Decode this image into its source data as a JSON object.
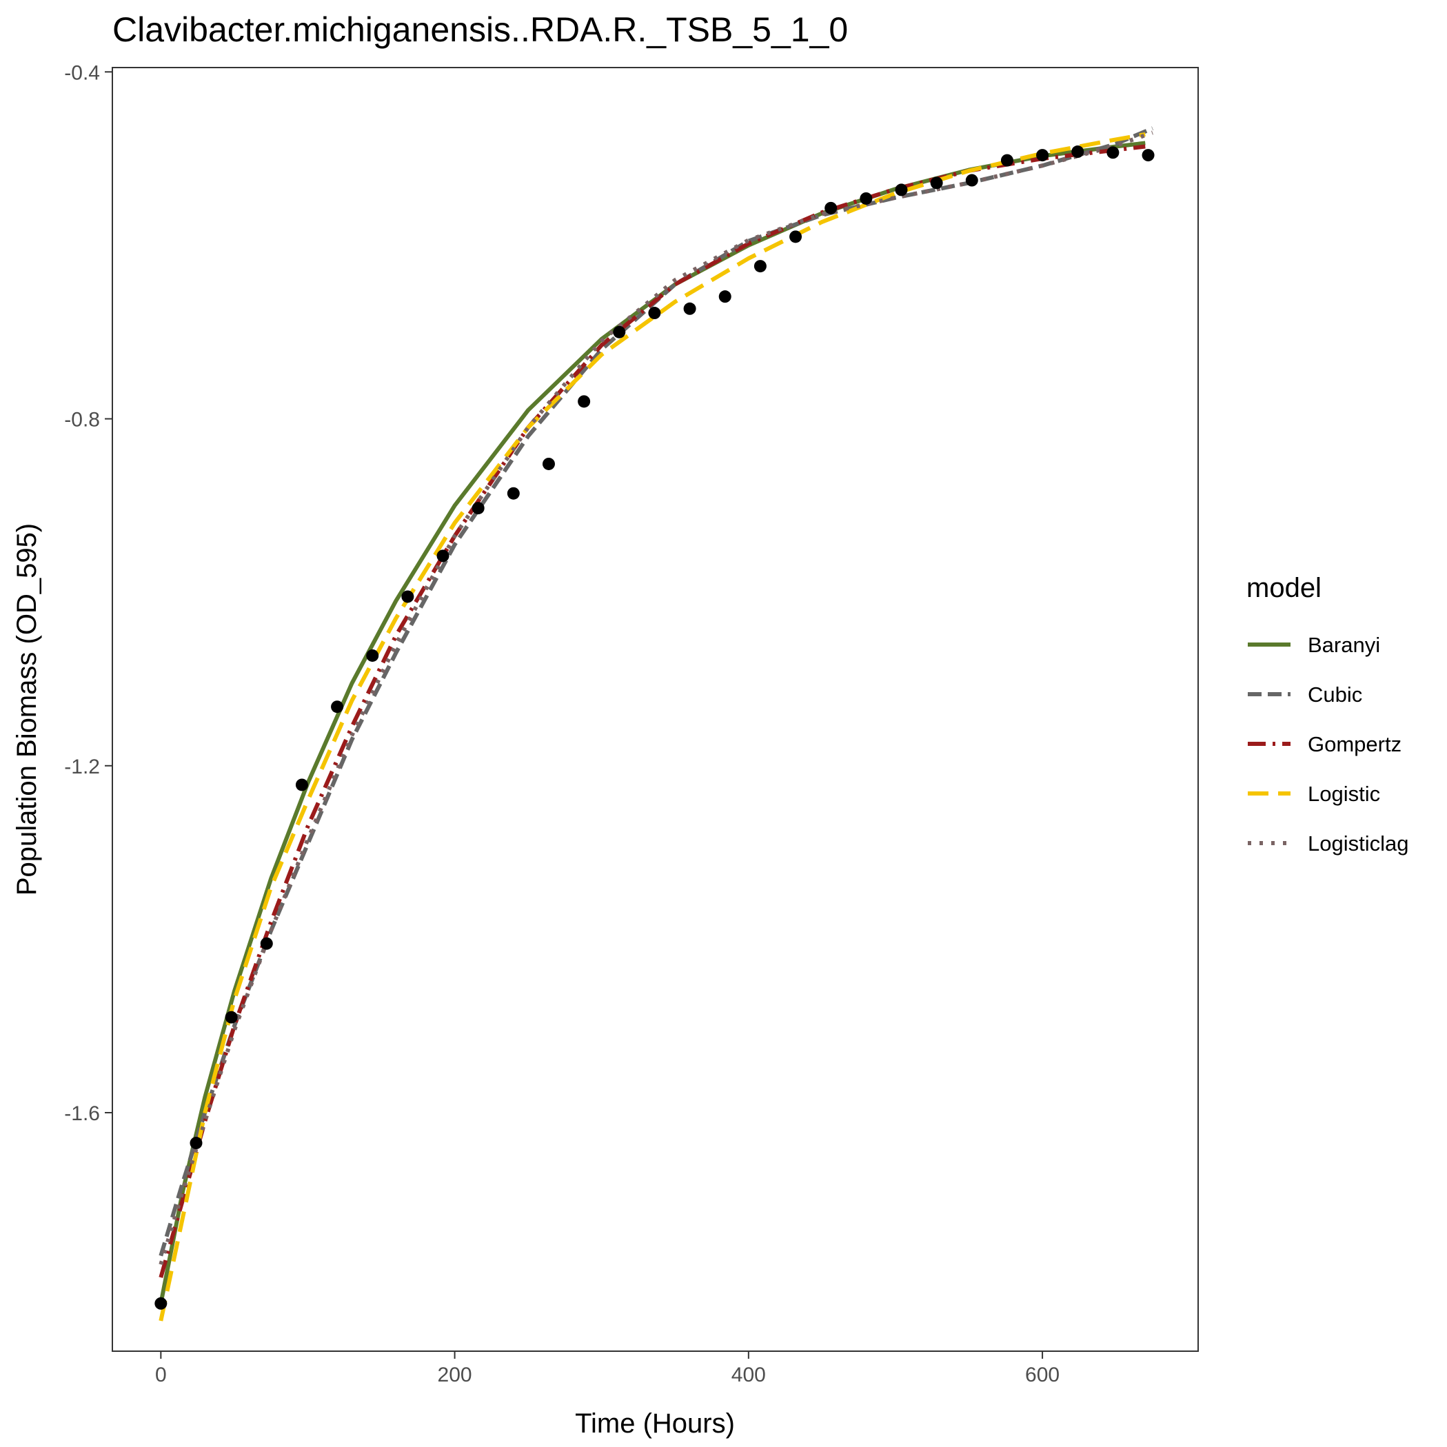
{
  "chart_data": {
    "type": "scatter",
    "title": "Clavibacter.michiganensis..RDA.R._TSB_5_1_0",
    "xlabel": "Time (Hours)",
    "ylabel": "Population Biomass (OD_595)",
    "xlim": [
      -33,
      706
    ],
    "ylim": [
      -1.875,
      -0.395
    ],
    "xticks": [
      0,
      200,
      400,
      600
    ],
    "xtick_labels": [
      "0",
      "200",
      "400",
      "600"
    ],
    "yticks": [
      -1.6,
      -1.2,
      -0.8,
      -0.4
    ],
    "ytick_labels": [
      "-1.6",
      "-1.2",
      "-0.8",
      "-0.4"
    ],
    "grid": false,
    "legend": {
      "title": "model",
      "placement": "right"
    },
    "points": {
      "x": [
        0,
        24,
        48,
        72,
        96,
        120,
        144,
        168,
        192,
        216,
        240,
        264,
        288,
        312,
        336,
        360,
        384,
        408,
        432,
        456,
        480,
        504,
        528,
        552,
        576,
        600,
        624,
        648,
        672
      ],
      "y": [
        -1.82,
        -1.635,
        -1.49,
        -1.405,
        -1.222,
        -1.132,
        -1.073,
        -1.005,
        -0.958,
        -0.903,
        -0.886,
        -0.852,
        -0.78,
        -0.7,
        -0.678,
        -0.673,
        -0.659,
        -0.624,
        -0.59,
        -0.557,
        -0.546,
        -0.536,
        -0.528,
        -0.525,
        -0.502,
        -0.496,
        -0.492,
        -0.493,
        -0.496
      ]
    },
    "series": [
      {
        "name": "Baranyi",
        "style": "solid",
        "color": "#5a7a2c",
        "x": [
          0,
          15,
          30,
          50,
          75,
          100,
          130,
          160,
          200,
          250,
          300,
          350,
          400,
          450,
          500,
          550,
          600,
          650,
          670
        ],
        "y": [
          -1.82,
          -1.69,
          -1.582,
          -1.46,
          -1.33,
          -1.22,
          -1.105,
          -1.01,
          -0.9,
          -0.79,
          -0.708,
          -0.645,
          -0.6,
          -0.563,
          -0.535,
          -0.513,
          -0.497,
          -0.486,
          -0.482
        ]
      },
      {
        "name": "Cubic",
        "style": "dashed",
        "color": "#666666",
        "x": [
          0,
          15,
          30,
          50,
          75,
          100,
          130,
          160,
          200,
          250,
          300,
          350,
          400,
          450,
          500,
          550,
          600,
          650,
          675
        ],
        "y": [
          -1.765,
          -1.68,
          -1.6,
          -1.5,
          -1.39,
          -1.29,
          -1.17,
          -1.07,
          -0.945,
          -0.82,
          -0.72,
          -0.645,
          -0.595,
          -0.565,
          -0.545,
          -0.528,
          -0.508,
          -0.483,
          -0.465
        ]
      },
      {
        "name": "Gompertz",
        "style": "dashdot",
        "color": "#9b1b1b",
        "x": [
          0,
          15,
          30,
          50,
          75,
          100,
          130,
          160,
          200,
          250,
          300,
          350,
          400,
          450,
          500,
          550,
          600,
          650,
          670
        ],
        "y": [
          -1.79,
          -1.7,
          -1.61,
          -1.5,
          -1.38,
          -1.27,
          -1.155,
          -1.05,
          -0.935,
          -0.81,
          -0.715,
          -0.645,
          -0.598,
          -0.562,
          -0.535,
          -0.514,
          -0.5,
          -0.49,
          -0.486
        ]
      },
      {
        "name": "Logistic",
        "style": "longdash",
        "color": "#f5c400",
        "x": [
          0,
          15,
          30,
          50,
          75,
          100,
          130,
          160,
          200,
          250,
          300,
          350,
          400,
          450,
          500,
          550,
          600,
          650,
          670
        ],
        "y": [
          -1.84,
          -1.72,
          -1.6,
          -1.47,
          -1.34,
          -1.24,
          -1.125,
          -1.03,
          -0.92,
          -0.81,
          -0.726,
          -0.665,
          -0.615,
          -0.573,
          -0.54,
          -0.514,
          -0.494,
          -0.478,
          -0.472
        ]
      },
      {
        "name": "Logisticlag",
        "style": "dotted",
        "color": "#7a6464",
        "x": [
          0,
          15,
          30,
          50,
          75,
          100,
          130,
          160,
          200,
          250,
          300,
          350,
          400,
          450,
          500,
          550,
          600,
          650,
          675
        ],
        "y": [
          -1.775,
          -1.69,
          -1.61,
          -1.505,
          -1.39,
          -1.285,
          -1.165,
          -1.06,
          -0.935,
          -0.81,
          -0.71,
          -0.64,
          -0.594,
          -0.564,
          -0.545,
          -0.528,
          -0.508,
          -0.485,
          -0.47
        ]
      }
    ]
  }
}
